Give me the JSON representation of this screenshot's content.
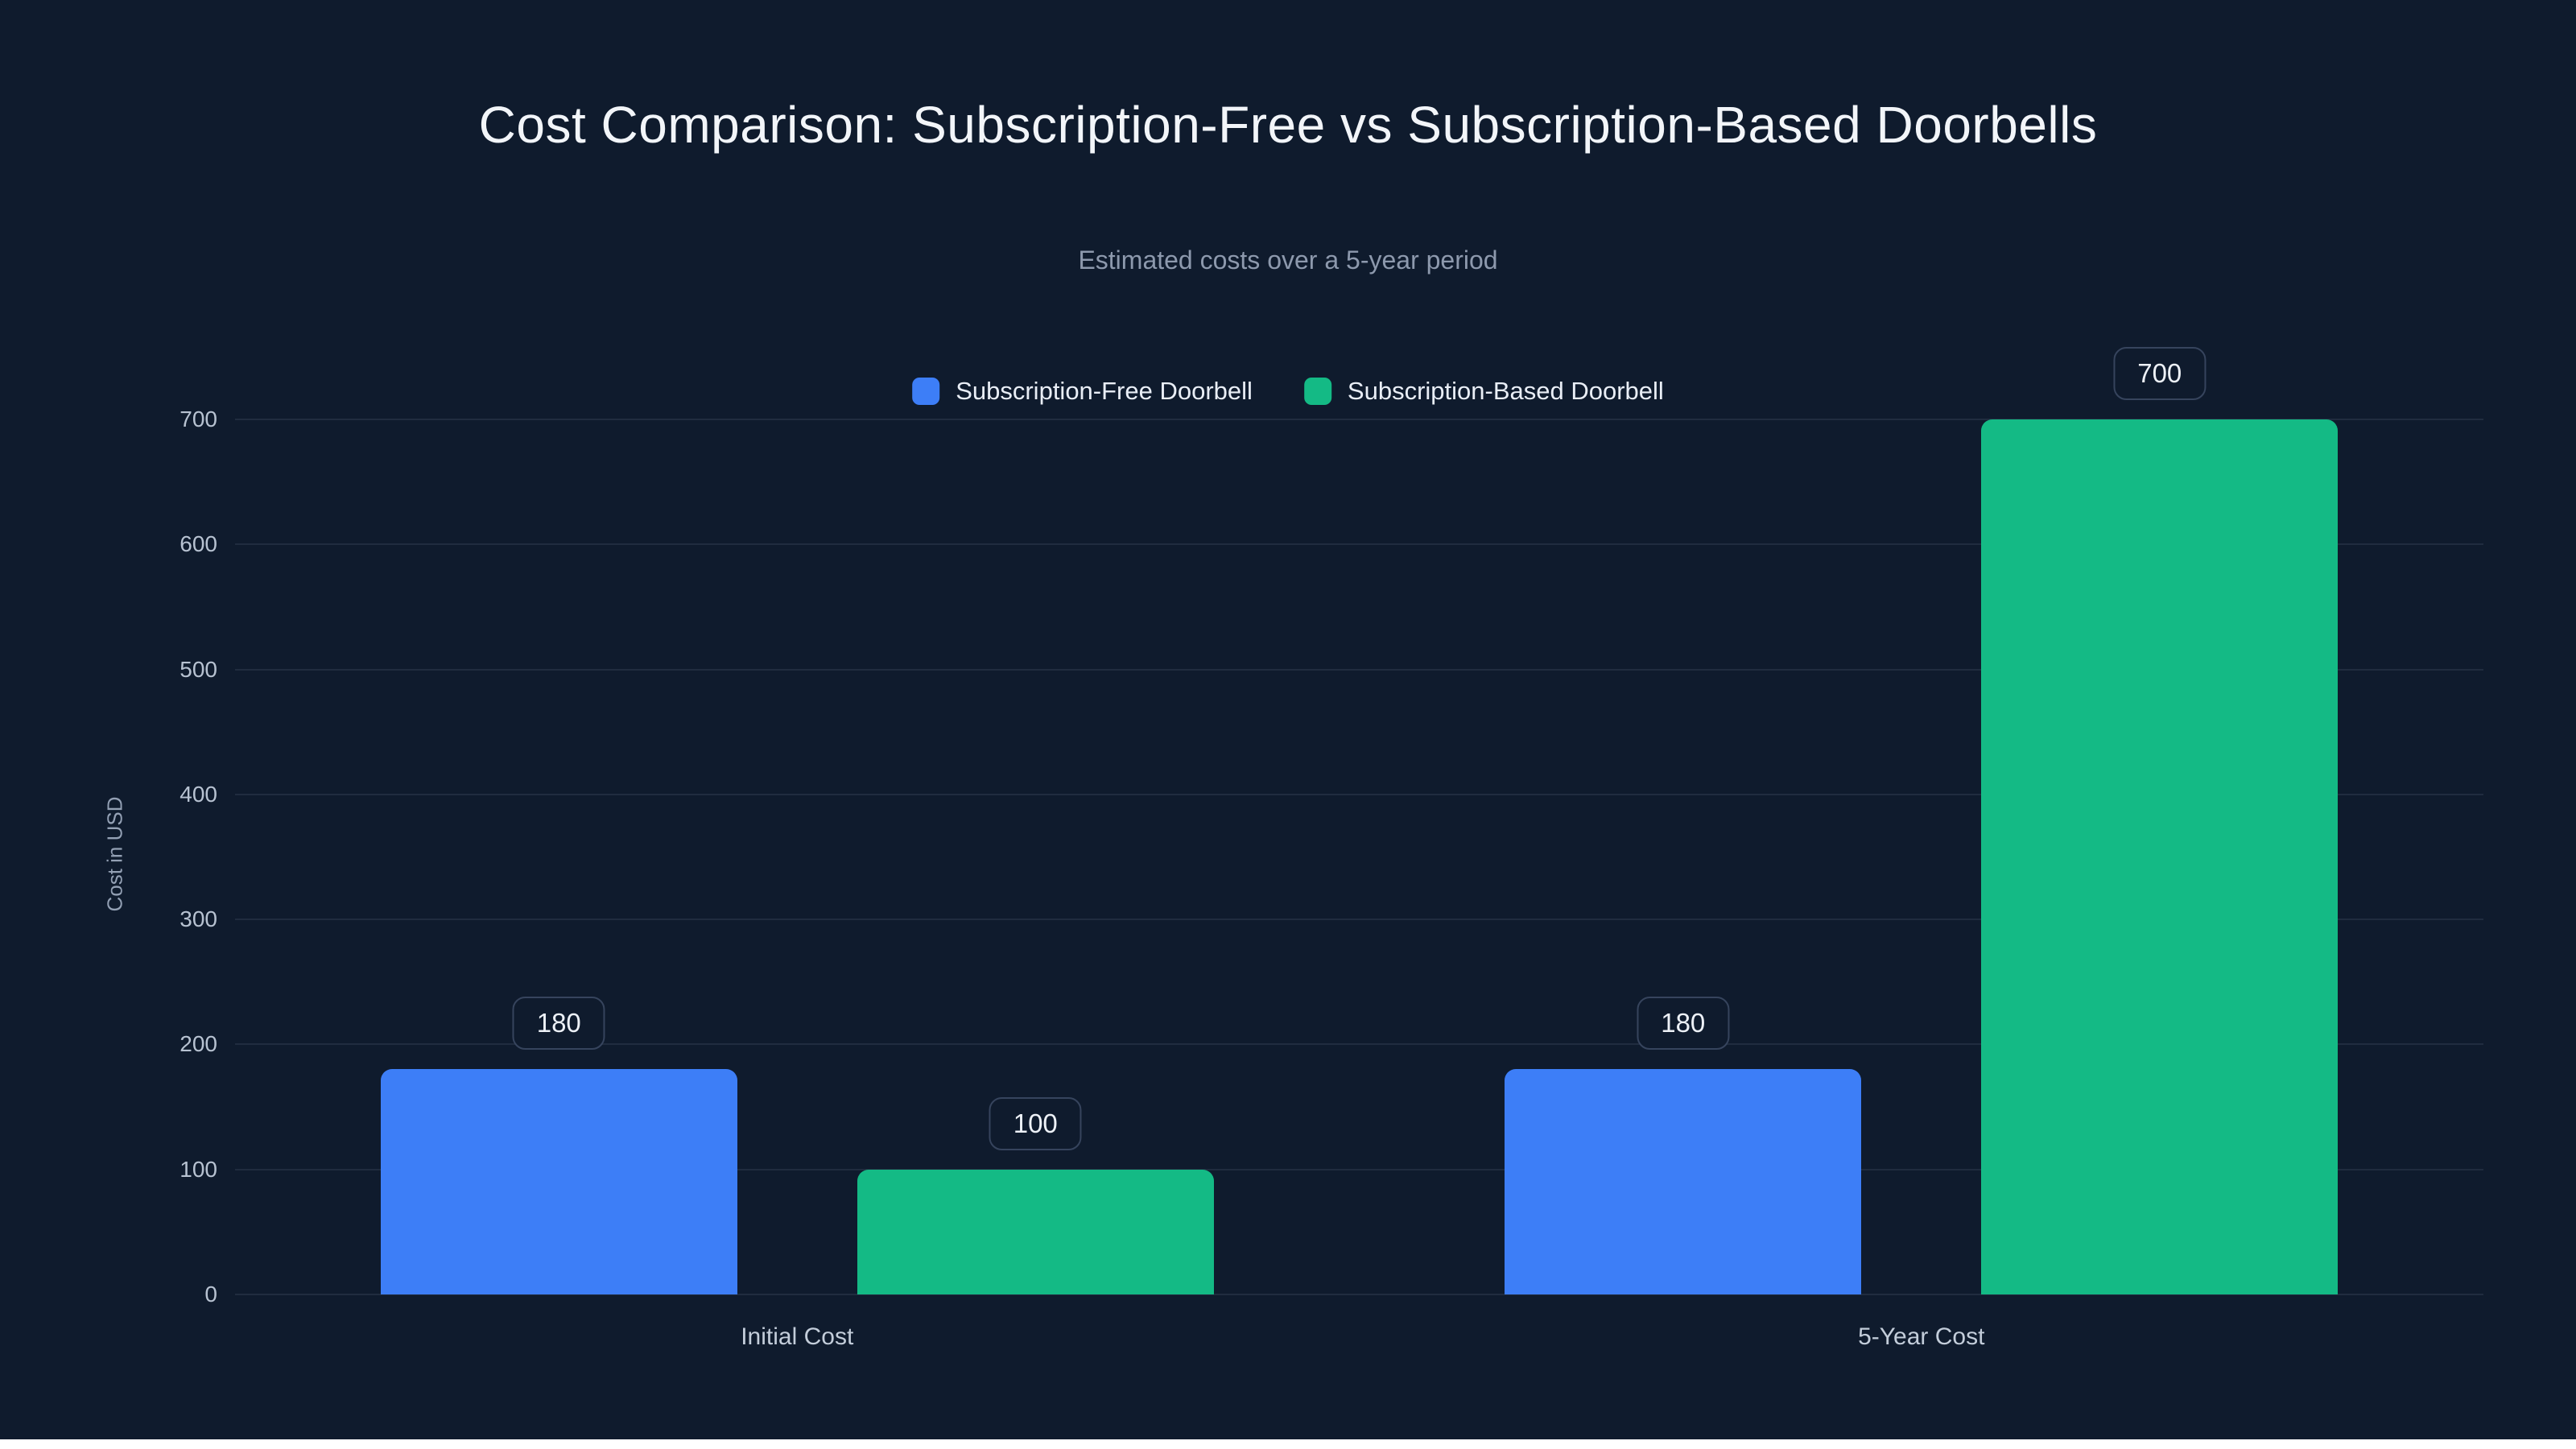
{
  "colors": {
    "background": "#0f1b2d",
    "series_free": "#3d7ef7",
    "series_based": "#14ba85",
    "grid": "rgba(148,163,184,0.13)",
    "title_text": "#f2f5f9",
    "subtitle_text": "#8d99ad",
    "tick_text": "#b7c2d1",
    "badge_border": "#36445d",
    "bottom_strip": "#ffffff"
  },
  "chart_data": {
    "type": "bar",
    "title": "Cost Comparison: Subscription-Free vs Subscription-Based Doorbells",
    "subtitle": "Estimated costs over a 5-year period",
    "ylabel": "Cost in USD",
    "xlabel": "",
    "categories": [
      "Initial Cost",
      "5-Year Cost"
    ],
    "series": [
      {
        "name": "Subscription-Free Doorbell",
        "color": "#3d7ef7",
        "values": [
          180,
          180
        ]
      },
      {
        "name": "Subscription-Based Doorbell",
        "color": "#14ba85",
        "values": [
          100,
          700
        ]
      }
    ],
    "value_labels": [
      "180",
      "100",
      "180",
      "700"
    ],
    "yticks": [
      0,
      100,
      200,
      300,
      400,
      500,
      600,
      700
    ],
    "ylim": [
      0,
      700
    ],
    "grid": true,
    "legend_position": "top"
  }
}
